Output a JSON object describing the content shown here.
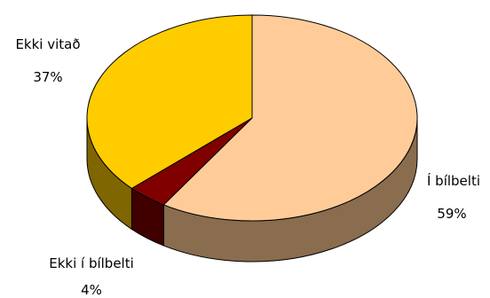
{
  "chart_data": {
    "type": "pie",
    "three_d": true,
    "slices": [
      {
        "label": "Í bílbelti",
        "value": 59,
        "value_label": "59%",
        "color": "#ffcc99",
        "side_color": "#8a6c4e"
      },
      {
        "label": "Ekki í bílbelti",
        "value": 4,
        "value_label": "4%",
        "color": "#800000",
        "side_color": "#400000"
      },
      {
        "label": "Ekki vitað",
        "value": 37,
        "value_label": "37%",
        "color": "#ffcc00",
        "side_color": "#806600"
      }
    ]
  }
}
